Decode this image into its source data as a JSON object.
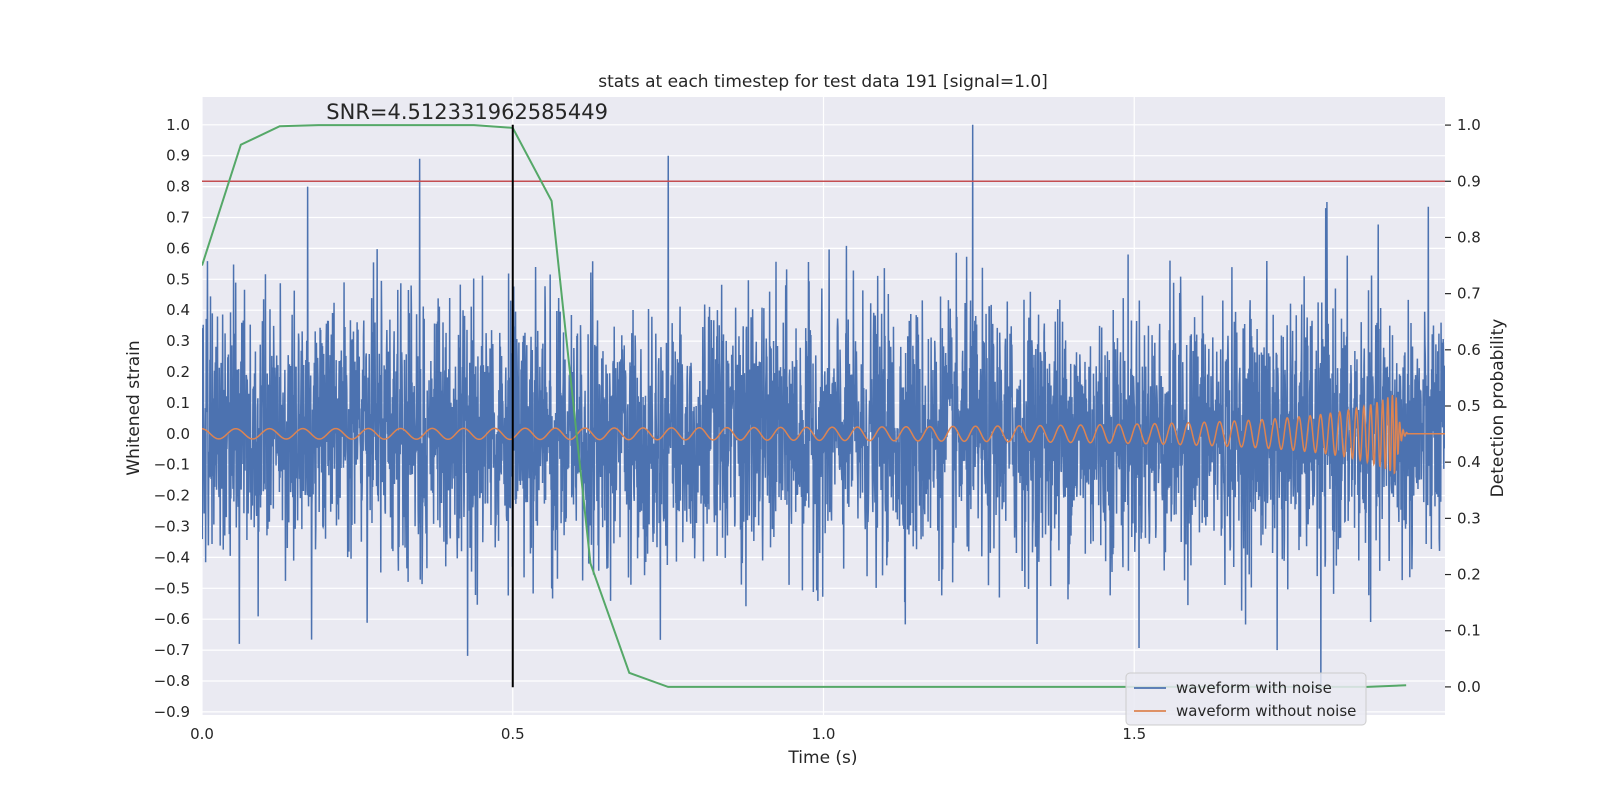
{
  "chart_data": {
    "type": "line",
    "title": "stats at each timestep for test data 191 [signal=1.0]",
    "xlabel": "Time (s)",
    "ylabel": "Whitened strain",
    "y2label": "Detection probability",
    "annotation": "SNR=4.512331962585449",
    "xlim": [
      0.0,
      2.0
    ],
    "ylim": [
      -0.91,
      1.09
    ],
    "y2lim": [
      -0.05,
      1.05
    ],
    "x_ticks": [
      "0.0",
      "0.5",
      "1.0",
      "1.5"
    ],
    "y_ticks": [
      "1.0",
      "0.9",
      "0.8",
      "0.7",
      "0.6",
      "0.5",
      "0.4",
      "0.3",
      "0.2",
      "0.1",
      "0.0",
      "−0.1",
      "−0.2",
      "−0.3",
      "−0.4",
      "−0.5",
      "−0.6",
      "−0.7",
      "−0.8",
      "−0.9"
    ],
    "y2_ticks": [
      "1.0",
      "0.9",
      "0.8",
      "0.7",
      "0.6",
      "0.5",
      "0.4",
      "0.3",
      "0.2",
      "0.1",
      "0.0"
    ],
    "grid": true,
    "legend_position": "lower-right",
    "threshold": {
      "y2": 0.9,
      "color": "#c44e52"
    },
    "vertical_marker": {
      "x": 0.5,
      "y_from": -0.82,
      "y_to": 1.0,
      "color": "#000000"
    },
    "series": [
      {
        "name": "waveform with noise",
        "color": "#4c72b0",
        "generated": "whitened noise, 4096 samples over 0–2 s, amplitude within approx. -0.83..1.0",
        "peaks": [
          {
            "x": 0.35,
            "y": 0.89
          },
          {
            "x": 0.75,
            "y": 0.9
          },
          {
            "x": 1.24,
            "y": 1.0
          },
          {
            "x": 1.81,
            "y": 0.75
          },
          {
            "x": 0.17,
            "y": 0.8
          },
          {
            "x": 1.8,
            "y": -0.82
          },
          {
            "x": 0.06,
            "y": -0.68
          },
          {
            "x": 1.73,
            "y": -0.7
          }
        ]
      },
      {
        "name": "waveform without noise",
        "color": "#dd8452",
        "generated": "chirp signal with rising frequency and amplitude, merger near 1.92 s",
        "peak_amplitude": 0.21
      },
      {
        "name": "",
        "color": "#55a868",
        "axis": "right",
        "x": [
          0.0,
          0.0625,
          0.125,
          0.1875,
          0.25,
          0.3125,
          0.375,
          0.4375,
          0.5,
          0.5625,
          0.625,
          0.6875,
          0.75,
          0.8125,
          0.875,
          0.9375,
          1.0,
          1.0625,
          1.125,
          1.1875,
          1.25,
          1.3125,
          1.375,
          1.4375,
          1.5,
          1.5625,
          1.625,
          1.6875,
          1.75,
          1.8125,
          1.875,
          1.9375
        ],
        "values": [
          0.75,
          0.965,
          0.998,
          1.0,
          1.0,
          1.0,
          1.0,
          1.0,
          0.995,
          0.865,
          0.22,
          0.025,
          0.0,
          0.0,
          0.0,
          0.0,
          0.0,
          0.0,
          0.0,
          0.0,
          0.0,
          0.0,
          0.0,
          0.0,
          0.0,
          0.0,
          0.0,
          0.0,
          0.0,
          0.0,
          0.0,
          0.003
        ]
      }
    ]
  }
}
